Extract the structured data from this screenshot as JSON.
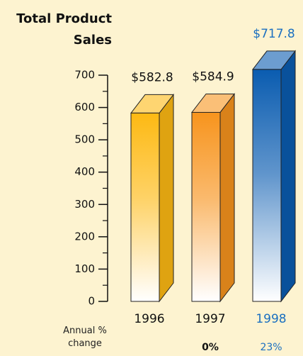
{
  "chart_data": {
    "type": "bar3d",
    "title": "Total Product Sales",
    "categories": [
      "1996",
      "1997",
      "1998"
    ],
    "values": [
      582.8,
      584.9,
      717.8
    ],
    "value_labels": [
      "$582.8",
      "$584.9",
      "$717.8"
    ],
    "colors": [
      "#fdb913",
      "#f7941d",
      "#0a5cb0"
    ],
    "label_colors": [
      "#111111",
      "#111111",
      "#1a6fc0"
    ],
    "ylim": [
      0,
      700
    ],
    "yticks": [
      0,
      100,
      200,
      300,
      400,
      500,
      600,
      700
    ],
    "minor_yticks": [
      50,
      150,
      250,
      350,
      450,
      550,
      650
    ],
    "annual_change": {
      "label": "Annual % change",
      "values": [
        null,
        0,
        23
      ],
      "value_labels": [
        null,
        "0%",
        "23%"
      ]
    }
  }
}
